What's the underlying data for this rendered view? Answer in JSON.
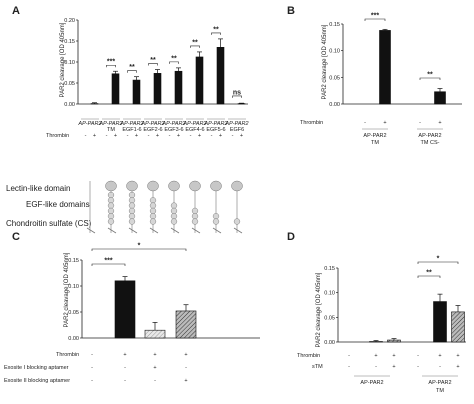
{
  "panels": [
    {
      "label": "A",
      "ylabel": "PAR2 cleavage [OD 405nm]",
      "ylim": [
        0,
        0.2
      ],
      "yticks": [
        "0.00",
        "0.05",
        "0.10",
        "0.15",
        "0.20"
      ],
      "group_labels": [
        "AP-PAR2",
        "AP-PAR2 TM",
        "AP-PAR2 EGF1-6",
        "AP-PAR2 EGF2-6",
        "AP-PAR2 EGF3-6",
        "AP-PAR2 EGF4-6",
        "AP-PAR2 EGF5-6",
        "AP-PAR2 EGF6"
      ],
      "row_label": "Thrombin",
      "row_values": [
        "-",
        "+",
        "-",
        "+",
        "-",
        "+",
        "-",
        "+",
        "-",
        "+",
        "-",
        "+",
        "-",
        "+",
        "-",
        "+"
      ],
      "values": [
        0,
        0.001,
        0,
        0.072,
        0,
        0.057,
        0,
        0.073,
        0,
        0.078,
        0,
        0.112,
        0,
        0.135,
        0,
        0.001
      ],
      "errors": [
        0,
        0.002,
        0,
        0.006,
        0,
        0.008,
        0,
        0.009,
        0,
        0.008,
        0,
        0.012,
        0,
        0.02,
        0,
        0.001
      ],
      "significance": [
        "",
        "***",
        "**",
        "**",
        "**",
        "**",
        "**",
        "ns"
      ]
    },
    {
      "label": "B",
      "ylabel": "PAR2 cleavage [OD 405nm]",
      "ylim": [
        0,
        0.15
      ],
      "yticks": [
        "0.00",
        "0.05",
        "0.10",
        "0.15"
      ],
      "row_label": "Thrombin",
      "row_values": [
        "-",
        "+",
        "-",
        "+"
      ],
      "values": [
        0,
        0.138,
        0,
        0.023
      ],
      "errors": [
        0,
        0.002,
        0,
        0.006
      ],
      "significance": [
        "***",
        "**"
      ],
      "group_labels": [
        "AP-PAR2 TM",
        "AP-PAR2 TM CS-"
      ]
    },
    {
      "label": "C",
      "ylabel": "PAR2 cleavage [OD 405nm]",
      "ylim": [
        0,
        0.15
      ],
      "yticks": [
        "0.00",
        "0.05",
        "0.10",
        "0.15"
      ],
      "rows": [
        {
          "label": "Thrombin",
          "values": [
            "-",
            "+",
            "+",
            "+"
          ]
        },
        {
          "label": "Exosite I blocking aptamer",
          "values": [
            "-",
            "-",
            "+",
            "-"
          ]
        },
        {
          "label": "Exosite II blocking aptamer",
          "values": [
            "-",
            "-",
            "-",
            "+"
          ]
        }
      ],
      "values": [
        0,
        0.11,
        0.015,
        0.052
      ],
      "errors": [
        0,
        0.008,
        0.015,
        0.012
      ],
      "significance": [
        "***",
        "*"
      ]
    },
    {
      "label": "D",
      "ylabel": "PAR2 cleavage [OD 405nm]",
      "ylim": [
        0,
        0.15
      ],
      "yticks": [
        "0.00",
        "0.05",
        "0.10",
        "0.15"
      ],
      "rows": [
        {
          "label": "Thrombin",
          "values": [
            "-",
            "+",
            "+",
            "-",
            "+",
            "+"
          ]
        },
        {
          "label": "sTM",
          "values": [
            "-",
            "-",
            "+",
            "-",
            "-",
            "+"
          ]
        }
      ],
      "values": [
        0,
        0.001,
        0.004,
        0,
        0.082,
        0.061
      ],
      "errors": [
        0,
        0.002,
        0.003,
        0,
        0.015,
        0.013
      ],
      "significance": [
        "**",
        "*"
      ],
      "group_labels": [
        "AP-PAR2",
        "AP-PAR2 TM"
      ]
    }
  ],
  "domain_labels": {
    "lectin": "Lectin-like domain",
    "egf": "EGF-like domains",
    "cs": "Chondroitin sulfate (CS)"
  }
}
